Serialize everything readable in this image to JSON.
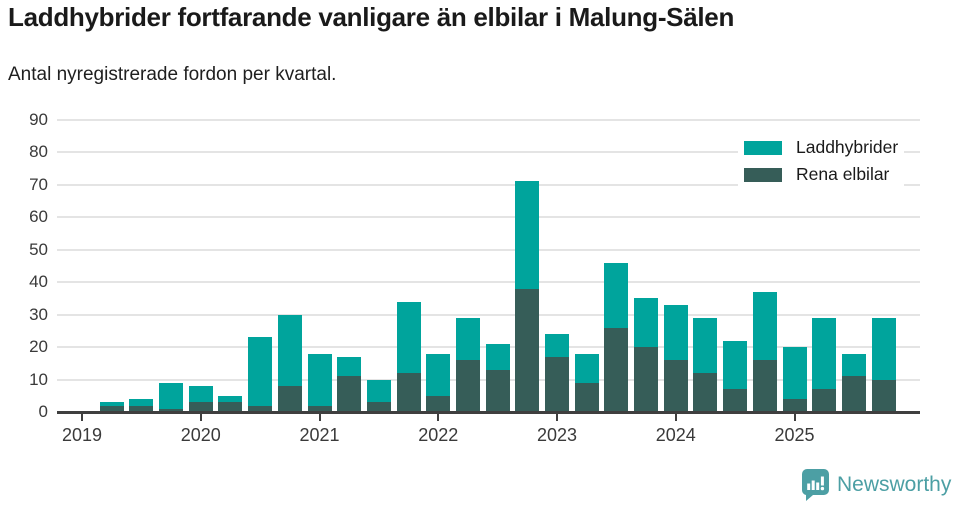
{
  "header": {
    "title": "Laddhybrider fortfarande vanligare än elbilar i Malung-Sälen",
    "subtitle": "Antal nyregistrerade fordon per kvartal."
  },
  "chart_data": {
    "type": "bar",
    "stacked": true,
    "title": "Laddhybrider fortfarande vanligare än elbilar i Malung-Sälen",
    "subtitle": "Antal nyregistrerade fordon per kvartal.",
    "categories": [
      "2019 Q1",
      "2019 Q2",
      "2019 Q3",
      "2019 Q4",
      "2020 Q1",
      "2020 Q2",
      "2020 Q3",
      "2020 Q4",
      "2021 Q1",
      "2021 Q2",
      "2021 Q3",
      "2021 Q4",
      "2022 Q1",
      "2022 Q2",
      "2022 Q3",
      "2022 Q4",
      "2023 Q1",
      "2023 Q2",
      "2023 Q3",
      "2023 Q4",
      "2024 Q1",
      "2024 Q2",
      "2024 Q3",
      "2024 Q4",
      "2025 Q1",
      "2025 Q2",
      "2025 Q3",
      "2025 Q4"
    ],
    "series": [
      {
        "name": "Rena elbilar",
        "color": "#365D58",
        "values": [
          0,
          2,
          2,
          1,
          3,
          3,
          2,
          8,
          2,
          11,
          3,
          12,
          5,
          16,
          13,
          38,
          17,
          9,
          26,
          20,
          16,
          12,
          7,
          16,
          4,
          7,
          11,
          10
        ]
      },
      {
        "name": "Laddhybrider",
        "color": "#00A49C",
        "values": [
          0,
          1,
          2,
          8,
          5,
          2,
          21,
          22,
          16,
          6,
          7,
          22,
          13,
          13,
          8,
          33,
          7,
          9,
          20,
          15,
          17,
          17,
          15,
          21,
          16,
          22,
          7,
          19
        ]
      }
    ],
    "stacked_totals": [
      0,
      3,
      4,
      9,
      8,
      5,
      23,
      30,
      18,
      17,
      10,
      34,
      18,
      29,
      21,
      71,
      24,
      18,
      46,
      35,
      33,
      29,
      22,
      37,
      20,
      29,
      18,
      29
    ],
    "xlabel": "",
    "ylabel": "",
    "ylim": [
      0,
      90
    ],
    "ytick_step": 10,
    "yticks": [
      0,
      10,
      20,
      30,
      40,
      50,
      60,
      70,
      80,
      90
    ],
    "year_ticks": [
      "2019",
      "2020",
      "2021",
      "2022",
      "2023",
      "2024",
      "2025"
    ],
    "grid": "horizontal",
    "legend_position": "top-right",
    "legend": [
      {
        "label": "Laddhybrider",
        "color": "#00A49C"
      },
      {
        "label": "Rena elbilar",
        "color": "#365D58"
      }
    ]
  },
  "colors": {
    "laddhybrider": "#00A49C",
    "rena_elbilar": "#365D58",
    "gridline": "#e4e4e4",
    "axis": "#3f3f3f",
    "brand": "#4C9FA4"
  },
  "footer": {
    "brand": "Newsworthy",
    "logo_icon": "bar-chart-speech-bubble-icon"
  }
}
